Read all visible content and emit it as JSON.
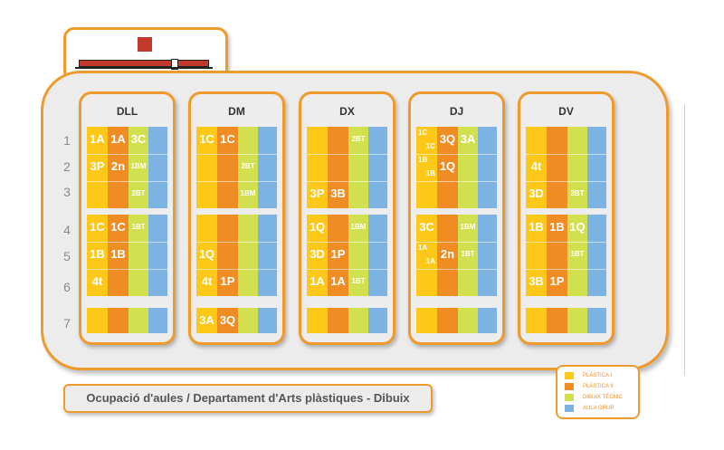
{
  "row_numbers": [
    "1",
    "2",
    "3",
    "4",
    "5",
    "6",
    "7"
  ],
  "days": [
    {
      "name": "DLL",
      "cells": [
        {
          "row": 1,
          "col": 1,
          "text": "1A"
        },
        {
          "row": 1,
          "col": 2,
          "text": "1A"
        },
        {
          "row": 1,
          "col": 3,
          "text": "3C"
        },
        {
          "row": 2,
          "col": 1,
          "text": "3P"
        },
        {
          "row": 2,
          "col": 2,
          "text": "2n"
        },
        {
          "row": 2,
          "col": 3,
          "text": "1BM",
          "small": true
        },
        {
          "row": 3,
          "col": 3,
          "text": "2BT",
          "small": true
        },
        {
          "row": 4,
          "col": 1,
          "text": "1C"
        },
        {
          "row": 4,
          "col": 2,
          "text": "1C"
        },
        {
          "row": 4,
          "col": 3,
          "text": "1BT",
          "small": true
        },
        {
          "row": 5,
          "col": 1,
          "text": "1B"
        },
        {
          "row": 5,
          "col": 2,
          "text": "1B"
        },
        {
          "row": 6,
          "col": 1,
          "text": "4t"
        }
      ]
    },
    {
      "name": "DM",
      "cells": [
        {
          "row": 1,
          "col": 1,
          "text": "1C"
        },
        {
          "row": 1,
          "col": 2,
          "text": "1C"
        },
        {
          "row": 2,
          "col": 3,
          "text": "2BT",
          "small": true
        },
        {
          "row": 3,
          "col": 3,
          "text": "1BM",
          "small": true
        },
        {
          "row": 5,
          "col": 1,
          "text": "1Q"
        },
        {
          "row": 6,
          "col": 1,
          "text": "4t"
        },
        {
          "row": 6,
          "col": 2,
          "text": "1P"
        },
        {
          "row": 7,
          "col": 1,
          "text": "3A"
        },
        {
          "row": 7,
          "col": 2,
          "text": "3Q"
        }
      ]
    },
    {
      "name": "DX",
      "cells": [
        {
          "row": 1,
          "col": 3,
          "text": "2BT",
          "small": true
        },
        {
          "row": 3,
          "col": 1,
          "text": "3P"
        },
        {
          "row": 3,
          "col": 2,
          "text": "3B"
        },
        {
          "row": 4,
          "col": 1,
          "text": "1Q"
        },
        {
          "row": 4,
          "col": 3,
          "text": "1BM",
          "small": true
        },
        {
          "row": 5,
          "col": 1,
          "text": "3D"
        },
        {
          "row": 5,
          "col": 2,
          "text": "1P"
        },
        {
          "row": 6,
          "col": 1,
          "text": "1A"
        },
        {
          "row": 6,
          "col": 2,
          "text": "1A"
        },
        {
          "row": 6,
          "col": 3,
          "text": "1BT",
          "small": true
        }
      ]
    },
    {
      "name": "DJ",
      "cells": [
        {
          "row": 1,
          "col": 1,
          "text": "1C",
          "text2": "1C",
          "split": true
        },
        {
          "row": 1,
          "col": 2,
          "text": "3Q"
        },
        {
          "row": 1,
          "col": 3,
          "text": "3A"
        },
        {
          "row": 2,
          "col": 1,
          "text": "1B",
          "text2": "1B",
          "split": true
        },
        {
          "row": 2,
          "col": 2,
          "text": "1Q"
        },
        {
          "row": 4,
          "col": 1,
          "text": "3C"
        },
        {
          "row": 4,
          "col": 3,
          "text": "1BM",
          "small": true
        },
        {
          "row": 5,
          "col": 1,
          "text": "1A",
          "text2": "1A",
          "split": true
        },
        {
          "row": 5,
          "col": 2,
          "text": "2n"
        },
        {
          "row": 5,
          "col": 3,
          "text": "1BT",
          "small": true
        }
      ]
    },
    {
      "name": "DV",
      "cells": [
        {
          "row": 2,
          "col": 1,
          "text": "4t"
        },
        {
          "row": 3,
          "col": 1,
          "text": "3D"
        },
        {
          "row": 3,
          "col": 3,
          "text": "2BT",
          "small": true
        },
        {
          "row": 4,
          "col": 1,
          "text": "1B"
        },
        {
          "row": 4,
          "col": 2,
          "text": "1B"
        },
        {
          "row": 4,
          "col": 3,
          "text": "1Q"
        },
        {
          "row": 5,
          "col": 3,
          "text": "1BT",
          "small": true
        },
        {
          "row": 6,
          "col": 1,
          "text": "3B"
        },
        {
          "row": 6,
          "col": 2,
          "text": "1P"
        }
      ]
    }
  ],
  "legend": [
    {
      "label": "PLÀSTICA I",
      "color": "#fdc818"
    },
    {
      "label": "PLÀSTICA II",
      "color": "#ef8d24"
    },
    {
      "label": "DIBUIX TÈCNIC",
      "color": "#d1e04f"
    },
    {
      "label": "AULA GRUP",
      "color": "#7cb3e2"
    }
  ],
  "caption": "Ocupació d'aules / Departament d'Arts plàstiques - Dibuix"
}
